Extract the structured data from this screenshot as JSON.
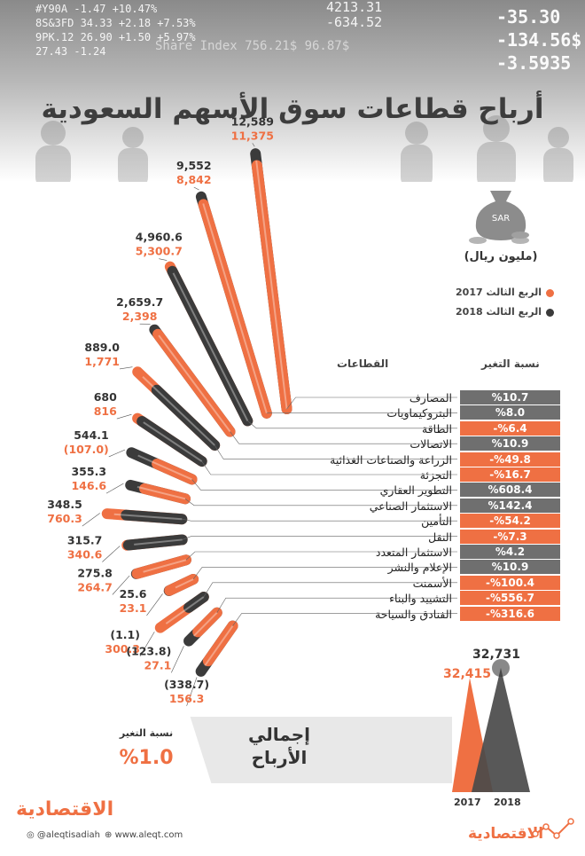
{
  "header": {
    "ticker_left": [
      "#Y90A  -1.47  +10.47%",
      "8S&3FD 34.33  +2.18  +7.53%",
      "9PK.12 26.90  +1.50  +5.97%",
      "       27.43  -1.24"
    ],
    "ticker_mid": [
      "4213.31",
      "-634.52"
    ],
    "ticker_right": [
      "-35.30",
      "-134.56$",
      "-3.5935"
    ],
    "ticker_index": "Share Index   756.21$   96.87$",
    "title": "أرباح قطاعات سوق الأسهم السعودية"
  },
  "legend": {
    "currency_icon": "SAR",
    "unit": "(مليون ريال)",
    "q2017": "الربع الثالث 2017",
    "q2018": "الربع الثالث 2018"
  },
  "table_headers": {
    "sectors": "القطاعات",
    "change": "نسبة التغير"
  },
  "colors": {
    "orange": "#ef7043",
    "dark": "#3b3b3b",
    "gray": "#6f6f6f"
  },
  "chart_data": {
    "type": "bar",
    "layout": "radial",
    "unit": "مليون ريال",
    "series": [
      {
        "name": "الربع الثالث 2017",
        "color": "#ef7043"
      },
      {
        "name": "الربع الثالث 2018",
        "color": "#3b3b3b"
      }
    ],
    "sectors": [
      {
        "name": "المصارف",
        "q2018": "12,589",
        "q2017": "11,375",
        "change": "%10.7",
        "trend": "up",
        "v2018": 12589,
        "v2017": 11375
      },
      {
        "name": "البتروكيماويات",
        "q2018": "9,552",
        "q2017": "8,842",
        "change": "%8.0",
        "trend": "up",
        "v2018": 9552,
        "v2017": 8842
      },
      {
        "name": "الطاقة",
        "q2018": "4,960.6",
        "q2017": "5,300.7",
        "change": "%6.4-",
        "trend": "down",
        "v2018": 4960.6,
        "v2017": 5300.7
      },
      {
        "name": "الاتصالات",
        "q2018": "2,659.7",
        "q2017": "2,398",
        "change": "%10.9",
        "trend": "up",
        "v2018": 2659.7,
        "v2017": 2398
      },
      {
        "name": "الزراعة والصناعات الغذائية",
        "q2018": "889.0",
        "q2017": "1,771",
        "change": "%49.8-",
        "trend": "down",
        "v2018": 889.0,
        "v2017": 1771
      },
      {
        "name": "التجزئة",
        "q2018": "680",
        "q2017": "816",
        "change": "%16.7-",
        "trend": "down",
        "v2018": 680,
        "v2017": 816
      },
      {
        "name": "التطوير العقاري",
        "q2018": "544.1",
        "q2017": "(107.0)",
        "change": "%608.4",
        "trend": "up",
        "v2018": 544.1,
        "v2017": -107.0
      },
      {
        "name": "الاستثمار الصناعي",
        "q2018": "355.3",
        "q2017": "146.6",
        "change": "%142.4",
        "trend": "up",
        "v2018": 355.3,
        "v2017": 146.6
      },
      {
        "name": "التأمين",
        "q2018": "348.5",
        "q2017": "760.3",
        "change": "%54.2-",
        "trend": "down",
        "v2018": 348.5,
        "v2017": 760.3
      },
      {
        "name": "النقل",
        "q2018": "315.7",
        "q2017": "340.6",
        "change": "%7.3-",
        "trend": "down",
        "v2018": 315.7,
        "v2017": 340.6
      },
      {
        "name": "الاستثمار المتعدد",
        "q2018": "275.8",
        "q2017": "264.7",
        "change": "%4.2",
        "trend": "up",
        "v2018": 275.8,
        "v2017": 264.7
      },
      {
        "name": "الإعلام والنشر",
        "q2018": "25.6",
        "q2017": "23.1",
        "change": "%10.9",
        "trend": "up",
        "v2018": 25.6,
        "v2017": 23.1
      },
      {
        "name": "الأسمنت",
        "q2018": "(1.1)",
        "q2017": "300.3",
        "change": "%100.4-",
        "trend": "down",
        "v2018": -1.1,
        "v2017": 300.3
      },
      {
        "name": "التشييد والبناء",
        "q2018": "(123.8)",
        "q2017": "27.1",
        "change": "%556.7-",
        "trend": "down",
        "v2018": -123.8,
        "v2017": 27.1
      },
      {
        "name": "الفنادق والسياحة",
        "q2018": "(338.7)",
        "q2017": "156.3",
        "change": "%316.6-",
        "trend": "down",
        "v2018": -338.7,
        "v2017": 156.3
      }
    ],
    "totals": {
      "label": "إجمالي الأرباح",
      "change_label": "نسبة التغير",
      "change_value": "%1.0",
      "year2017": "2017",
      "year2018": "2018",
      "value2017": "32,415",
      "value2018": "32,731",
      "v2017": 32415,
      "v2018": 32731
    }
  },
  "footer": {
    "brand": "الاقتصادية",
    "twitter": "@aleqtisadiah",
    "website": "www.aleqt.com",
    "brand_bottom": "الاقتصادية"
  }
}
